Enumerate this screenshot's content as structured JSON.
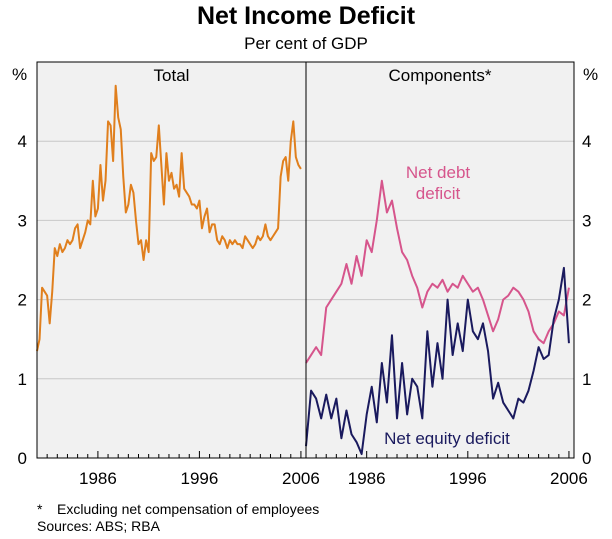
{
  "header": {
    "title": "Net Income Deficit",
    "subtitle": "Per cent of GDP"
  },
  "footnotes": {
    "note_marker": "*",
    "note": "Excluding net compensation of employees",
    "sources": "Sources: ABS; RBA"
  },
  "colors": {
    "total": "#e07f1d",
    "net_debt": "#d6558c",
    "net_equity": "#1a1a5e",
    "plot_bg": "#f1f1f1",
    "grid": "#c8c8c8"
  },
  "chart_data": [
    {
      "type": "line",
      "panel": "left",
      "title": "Total",
      "ylabel": "%",
      "ylim": [
        0,
        5
      ],
      "yticks": [
        "0",
        "1",
        "2",
        "3",
        "4"
      ],
      "xlim": [
        1980,
        2006.5
      ],
      "xticks": [
        "1986",
        "1996",
        "2006"
      ],
      "xtick_values": [
        1986,
        1996,
        2006
      ],
      "series": [
        {
          "name": "Total",
          "color_key": "total",
          "x": [
            1980.0,
            1980.25,
            1980.5,
            1980.75,
            1981.0,
            1981.25,
            1981.5,
            1981.75,
            1982.0,
            1982.25,
            1982.5,
            1982.75,
            1983.0,
            1983.25,
            1983.5,
            1983.75,
            1984.0,
            1984.25,
            1984.5,
            1984.75,
            1985.0,
            1985.25,
            1985.5,
            1985.75,
            1986.0,
            1986.25,
            1986.5,
            1986.75,
            1987.0,
            1987.25,
            1987.5,
            1987.75,
            1988.0,
            1988.25,
            1988.5,
            1988.75,
            1989.0,
            1989.25,
            1989.5,
            1989.75,
            1990.0,
            1990.25,
            1990.5,
            1990.75,
            1991.0,
            1991.25,
            1991.5,
            1991.75,
            1992.0,
            1992.25,
            1992.5,
            1992.75,
            1993.0,
            1993.25,
            1993.5,
            1993.75,
            1994.0,
            1994.25,
            1994.5,
            1994.75,
            1995.0,
            1995.25,
            1995.5,
            1995.75,
            1996.0,
            1996.25,
            1996.5,
            1996.75,
            1997.0,
            1997.25,
            1997.5,
            1997.75,
            1998.0,
            1998.25,
            1998.5,
            1998.75,
            1999.0,
            1999.25,
            1999.5,
            1999.75,
            2000.0,
            2000.25,
            2000.5,
            2000.75,
            2001.0,
            2001.25,
            2001.5,
            2001.75,
            2002.0,
            2002.25,
            2002.5,
            2002.75,
            2003.0,
            2003.25,
            2003.5,
            2003.75,
            2004.0,
            2004.25,
            2004.5,
            2004.75,
            2005.0,
            2005.25,
            2005.5,
            2005.75,
            2006.0
          ],
          "y": [
            1.35,
            1.5,
            2.15,
            2.1,
            2.05,
            1.7,
            2.1,
            2.65,
            2.55,
            2.7,
            2.6,
            2.65,
            2.75,
            2.7,
            2.75,
            2.9,
            2.95,
            2.65,
            2.75,
            2.85,
            3.0,
            2.95,
            3.5,
            3.05,
            3.15,
            3.7,
            3.25,
            3.5,
            4.25,
            4.2,
            3.75,
            4.7,
            4.3,
            4.15,
            3.55,
            3.1,
            3.2,
            3.45,
            3.35,
            3.0,
            2.7,
            2.75,
            2.5,
            2.75,
            2.6,
            3.85,
            3.75,
            3.8,
            4.2,
            3.7,
            3.2,
            3.85,
            3.5,
            3.6,
            3.4,
            3.45,
            3.3,
            3.85,
            3.4,
            3.35,
            3.3,
            3.2,
            3.2,
            3.15,
            3.25,
            2.9,
            3.05,
            3.15,
            2.85,
            2.95,
            2.95,
            2.75,
            2.7,
            2.8,
            2.75,
            2.65,
            2.75,
            2.7,
            2.75,
            2.7,
            2.7,
            2.65,
            2.8,
            2.75,
            2.7,
            2.65,
            2.7,
            2.8,
            2.75,
            2.8,
            2.95,
            2.8,
            2.75,
            2.8,
            2.85,
            2.9,
            3.55,
            3.75,
            3.8,
            3.5,
            4.0,
            4.25,
            3.8,
            3.7,
            3.65
          ]
        }
      ]
    },
    {
      "type": "line",
      "panel": "right",
      "title": "Components*",
      "ylabel": "%",
      "ylim": [
        0,
        5
      ],
      "yticks": [
        "0",
        "1",
        "2",
        "3",
        "4"
      ],
      "xlim": [
        1980,
        2006.5
      ],
      "xticks": [
        "1986",
        "1996",
        "2006"
      ],
      "xtick_values": [
        1986,
        1996,
        2006
      ],
      "series": [
        {
          "name": "Net debt deficit",
          "label_line1": "Net debt",
          "label_line2": "deficit",
          "color_key": "net_debt",
          "x": [
            1980.0,
            1980.5,
            1981.0,
            1981.5,
            1982.0,
            1982.5,
            1983.0,
            1983.5,
            1984.0,
            1984.5,
            1985.0,
            1985.5,
            1986.0,
            1986.5,
            1987.0,
            1987.5,
            1988.0,
            1988.5,
            1989.0,
            1989.5,
            1990.0,
            1990.5,
            1991.0,
            1991.5,
            1992.0,
            1992.5,
            1993.0,
            1993.5,
            1994.0,
            1994.5,
            1995.0,
            1995.5,
            1996.0,
            1996.5,
            1997.0,
            1997.5,
            1998.0,
            1998.5,
            1999.0,
            1999.5,
            2000.0,
            2000.5,
            2001.0,
            2001.5,
            2002.0,
            2002.5,
            2003.0,
            2003.5,
            2004.0,
            2004.5,
            2005.0,
            2005.5,
            2006.0
          ],
          "y": [
            1.2,
            1.3,
            1.4,
            1.3,
            1.9,
            2.0,
            2.1,
            2.2,
            2.45,
            2.2,
            2.55,
            2.3,
            2.75,
            2.6,
            3.0,
            3.5,
            3.1,
            3.25,
            2.9,
            2.6,
            2.5,
            2.3,
            2.15,
            1.9,
            2.1,
            2.2,
            2.15,
            2.25,
            2.1,
            2.2,
            2.15,
            2.3,
            2.2,
            2.1,
            2.15,
            2.0,
            1.8,
            1.6,
            1.75,
            2.0,
            2.05,
            2.15,
            2.1,
            2.0,
            1.85,
            1.6,
            1.5,
            1.45,
            1.6,
            1.7,
            1.85,
            1.8,
            2.15
          ]
        },
        {
          "name": "Net equity deficit",
          "label": "Net equity deficit",
          "color_key": "net_equity",
          "x": [
            1980.0,
            1980.5,
            1981.0,
            1981.5,
            1982.0,
            1982.5,
            1983.0,
            1983.5,
            1984.0,
            1984.5,
            1985.0,
            1985.5,
            1986.0,
            1986.5,
            1987.0,
            1987.5,
            1988.0,
            1988.5,
            1989.0,
            1989.5,
            1990.0,
            1990.5,
            1991.0,
            1991.5,
            1992.0,
            1992.5,
            1993.0,
            1993.5,
            1994.0,
            1994.5,
            1995.0,
            1995.5,
            1996.0,
            1996.5,
            1997.0,
            1997.5,
            1998.0,
            1998.5,
            1999.0,
            1999.5,
            2000.0,
            2000.5,
            2001.0,
            2001.5,
            2002.0,
            2002.5,
            2003.0,
            2003.5,
            2004.0,
            2004.5,
            2005.0,
            2005.5,
            2006.0
          ],
          "y": [
            0.15,
            0.85,
            0.75,
            0.5,
            0.8,
            0.5,
            0.75,
            0.25,
            0.6,
            0.3,
            0.2,
            0.05,
            0.55,
            0.9,
            0.45,
            1.2,
            0.7,
            1.55,
            0.5,
            1.2,
            0.55,
            1.0,
            0.9,
            0.5,
            1.6,
            0.9,
            1.45,
            1.0,
            2.0,
            1.3,
            1.7,
            1.35,
            2.0,
            1.6,
            1.5,
            1.7,
            1.35,
            0.75,
            0.95,
            0.7,
            0.6,
            0.5,
            0.75,
            0.7,
            0.85,
            1.1,
            1.4,
            1.25,
            1.3,
            1.75,
            2.0,
            2.4,
            1.45
          ]
        }
      ]
    }
  ]
}
